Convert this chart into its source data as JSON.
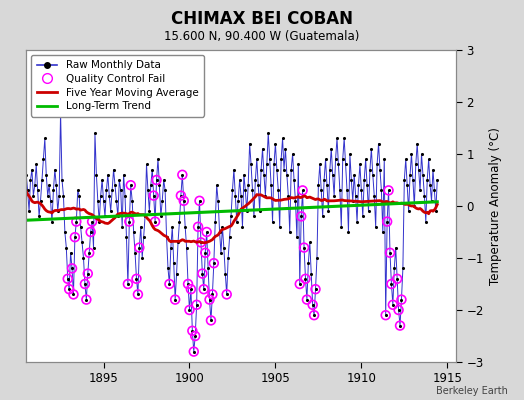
{
  "title": "CHIMAX BEI COBAN",
  "subtitle": "15.600 N, 90.400 W (Guatemala)",
  "ylabel": "Temperature Anomaly (°C)",
  "watermark": "Berkeley Earth",
  "ylim": [
    -3,
    3
  ],
  "xlim": [
    1890.5,
    1915.5
  ],
  "xticks": [
    1895,
    1900,
    1905,
    1910,
    1915
  ],
  "yticks": [
    -3,
    -2,
    -1,
    0,
    1,
    2,
    3
  ],
  "bg_color": "#d8d8d8",
  "plot_bg_color": "#ffffff",
  "raw_color": "#3333cc",
  "dot_color": "#000000",
  "qc_color": "#ff00ff",
  "ma_color": "#cc0000",
  "trend_color": "#00bb00",
  "grid_color": "#aaaaaa",
  "raw_monthly": [
    0.6,
    0.3,
    -0.1,
    0.5,
    0.7,
    0.2,
    0.4,
    0.8,
    0.3,
    -0.2,
    0.1,
    0.5,
    0.9,
    1.3,
    0.6,
    0.2,
    0.4,
    0.1,
    -0.3,
    0.3,
    0.7,
    0.4,
    -0.1,
    0.2,
    1.8,
    0.5,
    0.2,
    -0.5,
    -0.8,
    -1.4,
    -1.6,
    -0.9,
    -1.2,
    -1.7,
    -0.6,
    -0.3,
    0.3,
    0.2,
    -0.4,
    -0.7,
    -1.0,
    -1.5,
    -1.8,
    -1.3,
    -0.9,
    -0.5,
    -0.3,
    -0.8,
    1.4,
    0.6,
    0.1,
    -0.3,
    0.2,
    0.5,
    0.1,
    -0.2,
    0.3,
    0.6,
    0.2,
    -0.1,
    0.3,
    0.7,
    0.4,
    0.1,
    -0.2,
    0.5,
    0.3,
    -0.4,
    0.6,
    0.2,
    -0.6,
    -1.5,
    -0.3,
    0.4,
    0.1,
    -0.5,
    -0.9,
    -1.4,
    -1.7,
    -0.8,
    -0.4,
    -1.0,
    -0.6,
    -0.2,
    0.8,
    0.3,
    -0.1,
    0.4,
    0.7,
    0.2,
    -0.3,
    0.5,
    0.9,
    0.4,
    -0.2,
    0.1,
    0.5,
    0.3,
    -0.6,
    -1.2,
    -1.5,
    -0.8,
    -0.4,
    -1.1,
    -1.8,
    -1.3,
    -0.7,
    -0.3,
    0.2,
    0.6,
    0.1,
    -0.4,
    -0.8,
    -1.5,
    -2.0,
    -1.6,
    -2.4,
    -2.8,
    -2.5,
    -1.9,
    -0.4,
    0.1,
    -0.7,
    -1.3,
    -1.6,
    -0.9,
    -0.5,
    -1.2,
    -1.8,
    -2.2,
    -1.7,
    -1.1,
    -0.3,
    0.4,
    0.1,
    -0.5,
    -0.9,
    -0.4,
    -0.8,
    -1.3,
    -1.7,
    -1.0,
    -0.6,
    -0.2,
    0.3,
    0.7,
    0.2,
    -0.3,
    0.1,
    0.5,
    0.2,
    -0.4,
    0.6,
    0.3,
    -0.1,
    0.4,
    1.2,
    0.8,
    0.3,
    -0.2,
    0.5,
    0.9,
    0.4,
    -0.1,
    0.7,
    1.1,
    0.6,
    0.2,
    0.8,
    1.4,
    0.9,
    0.4,
    -0.3,
    0.8,
    1.2,
    0.7,
    0.3,
    -0.4,
    0.9,
    1.3,
    0.7,
    1.1,
    0.6,
    0.2,
    -0.5,
    0.7,
    1.0,
    0.5,
    0.1,
    -0.6,
    0.8,
    -1.5,
    -0.2,
    0.3,
    -0.8,
    -1.4,
    -1.8,
    -1.1,
    -0.7,
    -1.3,
    -1.9,
    -2.1,
    -1.6,
    -1.0,
    0.4,
    0.8,
    0.3,
    -0.2,
    0.5,
    0.9,
    0.4,
    -0.1,
    0.7,
    1.1,
    0.6,
    0.2,
    0.9,
    1.3,
    0.8,
    0.3,
    -0.4,
    0.9,
    1.3,
    0.8,
    0.3,
    -0.5,
    1.0,
    0.5,
    0.1,
    0.6,
    0.2,
    -0.3,
    0.4,
    0.8,
    0.3,
    -0.2,
    0.5,
    0.9,
    0.4,
    -0.1,
    0.7,
    1.1,
    0.6,
    0.2,
    -0.4,
    0.8,
    1.2,
    0.7,
    0.3,
    -0.5,
    0.9,
    -2.1,
    -0.3,
    0.3,
    -0.9,
    -1.5,
    -1.9,
    -1.2,
    -0.8,
    -1.4,
    -2.0,
    -2.3,
    -1.8,
    -1.2,
    0.5,
    0.9,
    0.4,
    -0.1,
    0.6,
    1.0,
    0.5,
    0.0,
    0.8,
    1.2,
    0.7,
    0.3,
    1.0,
    0.6,
    0.2,
    -0.3,
    0.5,
    0.9,
    0.4,
    0.1,
    0.7,
    0.3,
    -0.1,
    0.5
  ],
  "qc_indices": [
    32,
    33,
    34,
    35,
    43,
    44,
    45,
    46,
    71,
    72,
    73,
    77,
    78,
    79,
    89,
    90,
    91,
    108,
    109,
    110,
    119,
    120,
    121,
    122,
    123,
    124,
    125,
    126,
    128,
    129,
    130,
    131,
    192,
    193,
    194,
    195,
    200,
    201,
    202,
    252,
    253,
    254,
    255
  ]
}
